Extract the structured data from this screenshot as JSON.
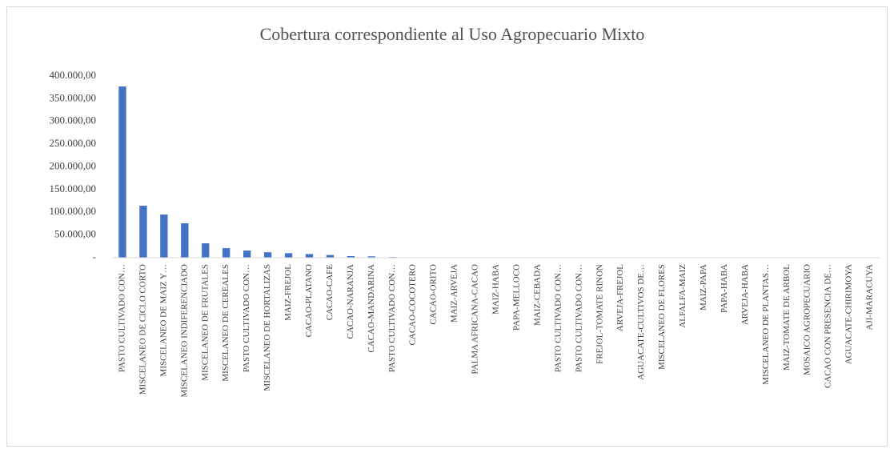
{
  "chart_data": {
    "type": "bar",
    "title": "Cobertura correspondiente al Uso Agropecuario Mixto",
    "categories": [
      "PASTO CULTIVADO CON…",
      "MISCELANEO DE CICLO CORTO",
      "MISCELANEO DE MAIZ Y…",
      "MISCELANEO INDIFERENCIADO",
      "MISCELANEO DE FRUTALES",
      "MISCELANEO DE CEREALES",
      "PASTO CULTIVADO CON…",
      "MISCELANEO DE HORTALIZAS",
      "MAIZ-FREJOL",
      "CACAO-PLATANO",
      "CACAO-CAFE",
      "CACAO-NARANJA",
      "CACAO-MANDARINA",
      "PASTO CULTIVADO CON…",
      "CACAO-COCOTERO",
      "CACAO-ORITO",
      "MAIZ-ARVEJA",
      "PALMA AFRICANA-CACAO",
      "MAIZ-HABA",
      "PAPA-MELLOCO",
      "MAIZ-CEBADA",
      "PASTO CULTIVADO CON…",
      "PASTO CULTIVADO CON…",
      "FREJOL-TOMATE RINON",
      "ARVEJA-FREJOL",
      "AGUACATE-CULTIVOS DE…",
      "MISCELANEO DE FLORES",
      "ALFALFA-MAIZ",
      "MAIZ-PAPA",
      "PAPA-HABA",
      "ARVEJA-HABA",
      "MISCELANEO DE PLANTAS…",
      "MAIZ-TOMATE DE ARBOL",
      "MOSAICO AGROPECUARIO",
      "CACAO CON PRESENCIA DE…",
      "AGUACATE-CHIRIMOYA",
      "AJI-MARACUYA"
    ],
    "values": [
      377000,
      114500,
      95000,
      75800,
      31700,
      21000,
      15800,
      12000,
      10000,
      8000,
      6000,
      3500,
      3000,
      1500,
      600,
      500,
      400,
      350,
      300,
      280,
      250,
      220,
      200,
      180,
      160,
      150,
      140,
      130,
      120,
      110,
      100,
      90,
      80,
      70,
      60,
      50,
      40
    ],
    "color": "#4472c4",
    "ylim": [
      0,
      400000
    ],
    "yticks": [
      {
        "value": 0,
        "label": "-"
      },
      {
        "value": 50000,
        "label": "50.000,00"
      },
      {
        "value": 100000,
        "label": "100.000,00"
      },
      {
        "value": 150000,
        "label": "150.000,00"
      },
      {
        "value": 200000,
        "label": "200.000,00"
      },
      {
        "value": 250000,
        "label": "250.000,00"
      },
      {
        "value": 300000,
        "label": "300.000,00"
      },
      {
        "value": 350000,
        "label": "350.000,00"
      },
      {
        "value": 400000,
        "label": "400.000,00"
      }
    ],
    "grid": false
  }
}
